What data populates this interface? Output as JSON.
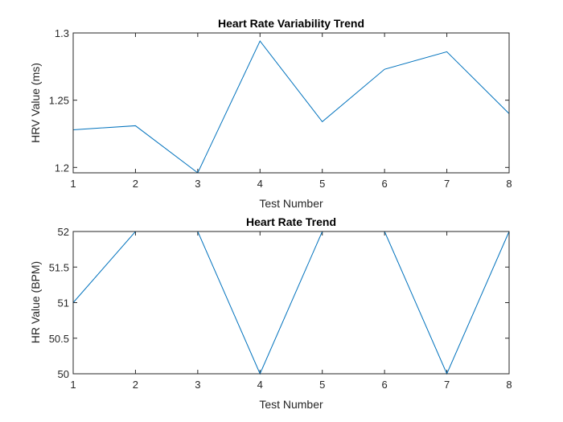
{
  "chart_data": [
    {
      "type": "line",
      "title": "Heart Rate Variability Trend",
      "xlabel": "Test Number",
      "ylabel": "HRV Value (ms)",
      "x": [
        1,
        2,
        3,
        4,
        5,
        6,
        7,
        8
      ],
      "xlim": [
        1,
        8
      ],
      "ylim": [
        1.196,
        1.3
      ],
      "xticks": [
        "1",
        "2",
        "3",
        "4",
        "5",
        "6",
        "7",
        "8"
      ],
      "yticks": [
        "1.2",
        "1.25",
        "1.3"
      ],
      "ytick_values": [
        1.2,
        1.25,
        1.3
      ],
      "series": [
        {
          "values": [
            1.228,
            1.231,
            1.196,
            1.294,
            1.234,
            1.273,
            1.286,
            1.24
          ]
        }
      ],
      "grid": false,
      "line_color": "#0072BD"
    },
    {
      "type": "line",
      "title": "Heart Rate Trend",
      "xlabel": "Test Number",
      "ylabel": "HR Value (BPM)",
      "x": [
        1,
        2,
        3,
        4,
        5,
        6,
        7,
        8
      ],
      "xlim": [
        1,
        8
      ],
      "ylim": [
        50,
        52
      ],
      "xticks": [
        "1",
        "2",
        "3",
        "4",
        "5",
        "6",
        "7",
        "8"
      ],
      "yticks": [
        "50",
        "50.5",
        "51",
        "51.5",
        "52"
      ],
      "ytick_values": [
        50,
        50.5,
        51,
        51.5,
        52
      ],
      "series": [
        {
          "values": [
            51,
            52,
            52,
            50,
            52,
            52,
            50,
            52
          ]
        }
      ],
      "grid": false,
      "line_color": "#0072BD"
    }
  ]
}
